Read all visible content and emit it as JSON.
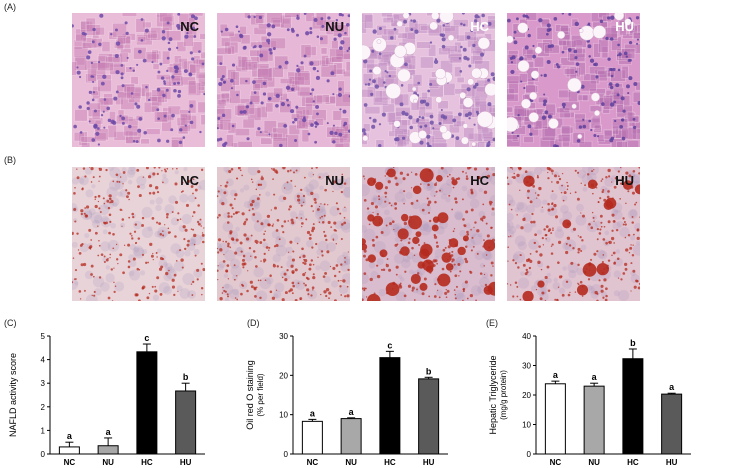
{
  "panel_labels": {
    "A": "(A)",
    "B": "(B)",
    "C": "(C)",
    "D": "(D)",
    "E": "(E)"
  },
  "he_images": [
    {
      "label": "NC",
      "base": "#e9bcd8",
      "cell": "#c87fb4",
      "nuc": "#6c4aa8",
      "vacuoles": 0
    },
    {
      "label": "NU",
      "base": "#e6b7d6",
      "cell": "#c47bb2",
      "nuc": "#6a45a6",
      "vacuoles": 0
    },
    {
      "label": "HC",
      "base": "#e7c2df",
      "cell": "#bf8cc2",
      "nuc": "#6f52a8",
      "vacuoles": 40
    },
    {
      "label": "HU",
      "base": "#d99acb",
      "cell": "#b56eb0",
      "nuc": "#5d3f9c",
      "vacuoles": 22
    }
  ],
  "oro_images": [
    {
      "label": "NC",
      "base": "#e8d3d8",
      "dots": 260,
      "big": 0
    },
    {
      "label": "NU",
      "base": "#e2c9d0",
      "dots": 320,
      "big": 0
    },
    {
      "label": "HC",
      "base": "#d9bccd",
      "dots": 260,
      "big": 40
    },
    {
      "label": "HU",
      "base": "#e0c4d0",
      "dots": 300,
      "big": 12
    }
  ],
  "colors": {
    "NC": "#ffffff",
    "NU": "#a8a8a8",
    "HC": "#000000",
    "HU": "#5a5a5a",
    "oro_red": "#b52a1e"
  },
  "chart_data": [
    {
      "type": "bar",
      "ylabel": "NAFLD activity score",
      "categories": [
        "NC",
        "NU",
        "HC",
        "HU"
      ],
      "values": [
        0.3,
        0.35,
        4.33,
        2.67
      ],
      "errors": [
        0.2,
        0.33,
        0.33,
        0.33
      ],
      "letters": [
        "a",
        "a",
        "c",
        "b"
      ],
      "ylim": [
        0,
        5
      ],
      "yticks": [
        0,
        1,
        2,
        3,
        4,
        5
      ]
    },
    {
      "type": "bar",
      "ylabel": "Oil red O staining",
      "ylabel2": "(% per field)",
      "categories": [
        "NC",
        "NU",
        "HC",
        "HU"
      ],
      "values": [
        8.3,
        9.0,
        24.5,
        19.1
      ],
      "errors": [
        0.5,
        0.2,
        1.6,
        0.4
      ],
      "letters": [
        "a",
        "a",
        "c",
        "b"
      ],
      "ylim": [
        0,
        30
      ],
      "yticks": [
        0,
        10,
        20,
        30
      ]
    },
    {
      "type": "bar",
      "ylabel": "Hepatic Triglyceride",
      "ylabel2": "(mg/g protein)",
      "categories": [
        "NC",
        "NU",
        "HC",
        "HU"
      ],
      "values": [
        23.8,
        23.0,
        32.3,
        20.3
      ],
      "errors": [
        0.9,
        1.0,
        3.3,
        0.3
      ],
      "letters": [
        "a",
        "a",
        "b",
        "a"
      ],
      "ylim": [
        0,
        40
      ],
      "yticks": [
        0,
        10,
        20,
        30,
        40
      ]
    }
  ]
}
